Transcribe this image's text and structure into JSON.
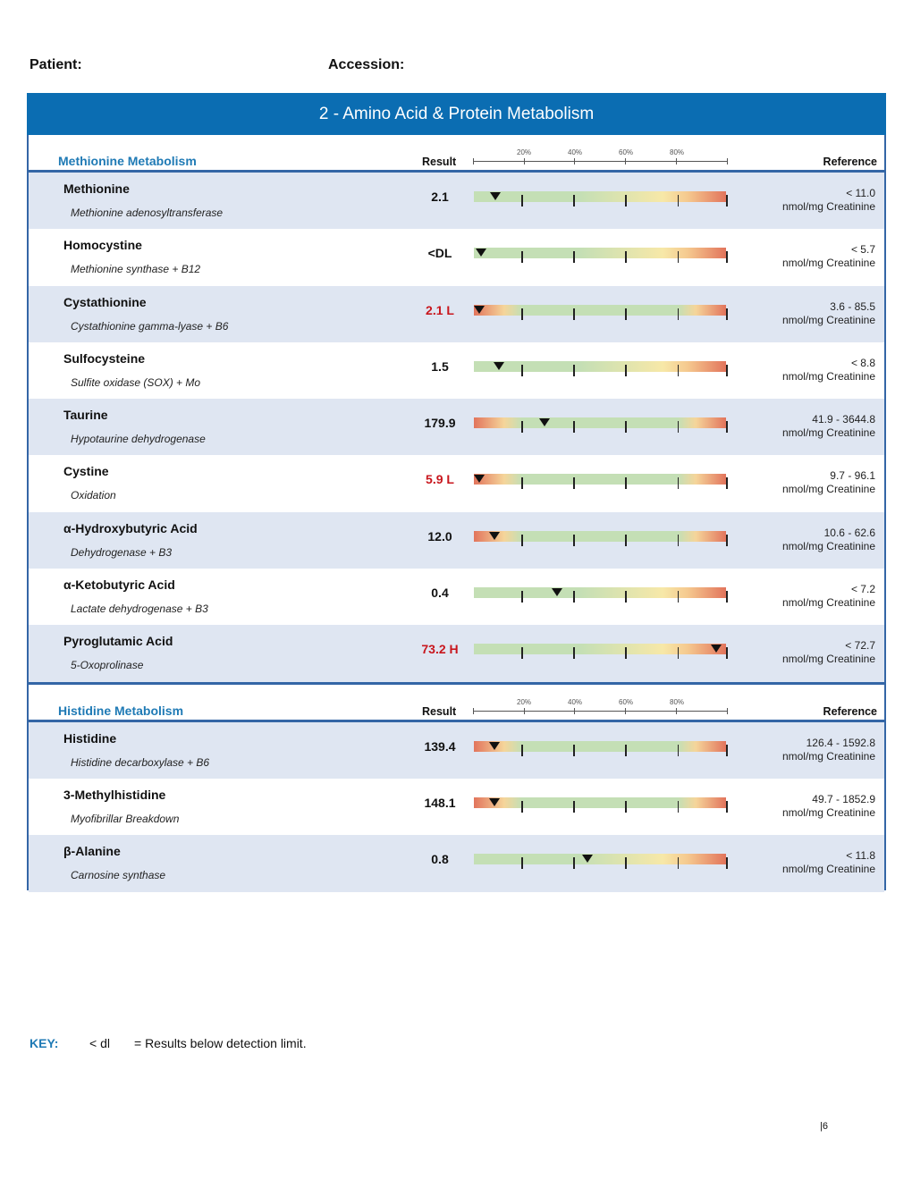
{
  "header": {
    "patient_label": "Patient:",
    "accession_label": "Accession:"
  },
  "banner_title": "2 - Amino Acid & Protein Metabolism",
  "scale_labels": [
    "20%",
    "40%",
    "60%",
    "80%"
  ],
  "sections": [
    {
      "title": "Methionine Metabolism",
      "result_label": "Result",
      "reference_label": "Reference",
      "rows": [
        {
          "name": "Methionine",
          "sub": "Methionine adenosyltransferase",
          "result": "2.1",
          "flag": false,
          "bar": "upper",
          "marker_pct": 8.5,
          "ref": "< 11.0",
          "unit": "nmol/mg Creatinine"
        },
        {
          "name": "Homocystine",
          "sub": "Methionine synthase + B12",
          "result": "<DL",
          "flag": false,
          "bar": "upper",
          "marker_pct": 3,
          "ref": "< 5.7",
          "unit": "nmol/mg Creatinine"
        },
        {
          "name": "Cystathionine",
          "sub": "Cystathionine gamma-lyase + B6",
          "result": "2.1 L",
          "flag": true,
          "bar": "two",
          "marker_pct": 2,
          "ref": "3.6 - 85.5",
          "unit": "nmol/mg Creatinine"
        },
        {
          "name": "Sulfocysteine",
          "sub": "Sulfite oxidase (SOX) + Mo",
          "result": "1.5",
          "flag": false,
          "bar": "upper",
          "marker_pct": 10,
          "ref": "< 8.8",
          "unit": "nmol/mg Creatinine"
        },
        {
          "name": "Taurine",
          "sub": "Hypotaurine dehydrogenase",
          "result": "179.9",
          "flag": false,
          "bar": "two",
          "marker_pct": 28,
          "ref": "41.9 - 3644.8",
          "unit": "nmol/mg Creatinine"
        },
        {
          "name": "Cystine",
          "sub": "Oxidation",
          "result": "5.9 L",
          "flag": true,
          "bar": "two",
          "marker_pct": 2,
          "ref": "9.7 - 96.1",
          "unit": "nmol/mg Creatinine"
        },
        {
          "name": "α-Hydroxybutyric Acid",
          "sub": "Dehydrogenase + B3",
          "result": "12.0",
          "flag": false,
          "bar": "two",
          "marker_pct": 8,
          "ref": "10.6 - 62.6",
          "unit": "nmol/mg Creatinine"
        },
        {
          "name": "α-Ketobutyric Acid",
          "sub": "Lactate dehydrogenase  + B3",
          "result": "0.4",
          "flag": false,
          "bar": "upper",
          "marker_pct": 33,
          "ref": "< 7.2",
          "unit": "nmol/mg Creatinine"
        },
        {
          "name": "Pyroglutamic Acid",
          "sub": "5-Oxoprolinase",
          "result": "73.2 H",
          "flag": true,
          "bar": "upper",
          "marker_pct": 96,
          "ref": "< 72.7",
          "unit": "nmol/mg Creatinine"
        }
      ]
    },
    {
      "title": "Histidine Metabolism",
      "result_label": "Result",
      "reference_label": "Reference",
      "rows": [
        {
          "name": "Histidine",
          "sub": "Histidine decarboxylase + B6",
          "result": "139.4",
          "flag": false,
          "bar": "two",
          "marker_pct": 8,
          "ref": "126.4 - 1592.8",
          "unit": "nmol/mg Creatinine"
        },
        {
          "name": "3-Methylhistidine",
          "sub": "Myofibrillar Breakdown",
          "result": "148.1",
          "flag": false,
          "bar": "two",
          "marker_pct": 8,
          "ref": "49.7 - 1852.9",
          "unit": "nmol/mg Creatinine"
        },
        {
          "name": "β-Alanine",
          "sub": "Carnosine synthase",
          "result": "0.8",
          "flag": false,
          "bar": "upper",
          "marker_pct": 45,
          "ref": "< 11.8",
          "unit": "nmol/mg Creatinine"
        }
      ]
    }
  ],
  "key": {
    "label": "KEY:",
    "symbol": "< dl",
    "text": "= Results below detection limit."
  },
  "page_number": "|6",
  "colors": {
    "banner": "#0b6db2",
    "section_title": "#1f7ab5",
    "flag": "#c8161d",
    "row_alt": "#dfe6f2"
  }
}
